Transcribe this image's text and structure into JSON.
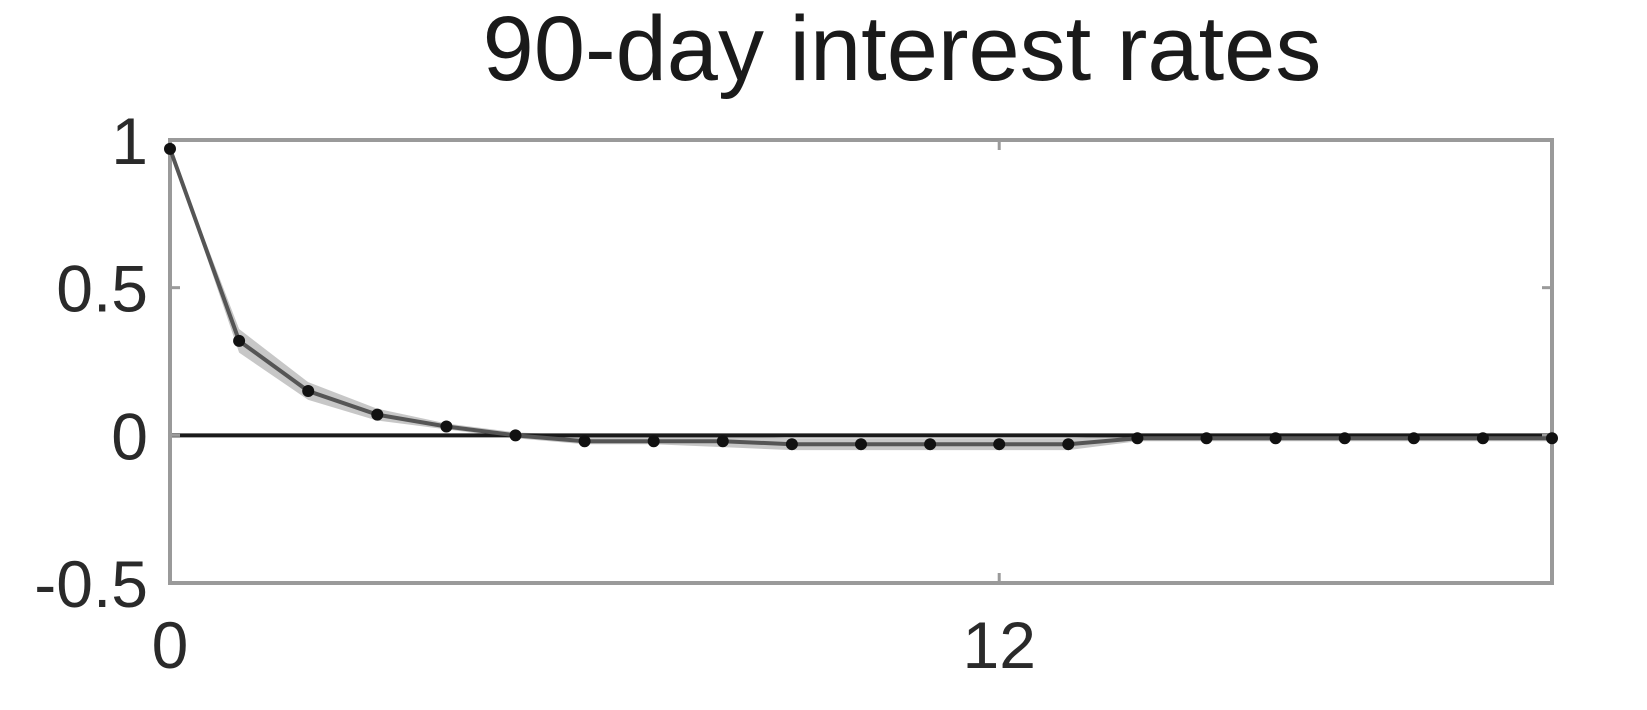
{
  "chart_data": {
    "type": "line",
    "title": "90-day interest rates",
    "xlabel": "",
    "ylabel": "",
    "xlim": [
      0,
      20
    ],
    "ylim": [
      -0.5,
      1
    ],
    "xticks": [
      0,
      12
    ],
    "xtick_labels": [
      "0",
      "12"
    ],
    "yticks": [
      1,
      0.5,
      0,
      -0.5
    ],
    "ytick_labels": [
      "1",
      "0.5",
      "0",
      "-0.5"
    ],
    "grid": false,
    "zero_line": true,
    "colors": {
      "line": "#555555",
      "marker": "#111111",
      "band": "#bdbdbd",
      "frame": "#9a9a9a",
      "zero": "#1a1a1a"
    },
    "series": [
      {
        "x": [
          0,
          1,
          2,
          3,
          4,
          5,
          6,
          7,
          8,
          9,
          10,
          11,
          12,
          13,
          14,
          15,
          16,
          17,
          18,
          19,
          20
        ],
        "values": [
          0.97,
          0.32,
          0.15,
          0.07,
          0.03,
          0.0,
          -0.02,
          -0.02,
          -0.02,
          -0.03,
          -0.03,
          -0.03,
          -0.03,
          -0.03,
          -0.01,
          -0.01,
          -0.01,
          -0.01,
          -0.01,
          -0.01,
          -0.01
        ],
        "band_lower": [
          0.97,
          0.28,
          0.12,
          0.05,
          0.02,
          -0.01,
          -0.03,
          -0.03,
          -0.04,
          -0.05,
          -0.05,
          -0.05,
          -0.05,
          -0.05,
          -0.02,
          -0.02,
          -0.02,
          -0.02,
          -0.02,
          -0.02,
          -0.02
        ],
        "band_upper": [
          0.97,
          0.36,
          0.18,
          0.09,
          0.04,
          0.01,
          0.0,
          0.0,
          0.0,
          -0.01,
          -0.01,
          -0.01,
          -0.01,
          -0.01,
          0.0,
          0.0,
          0.0,
          0.0,
          0.0,
          0.0,
          0.0
        ]
      }
    ]
  }
}
